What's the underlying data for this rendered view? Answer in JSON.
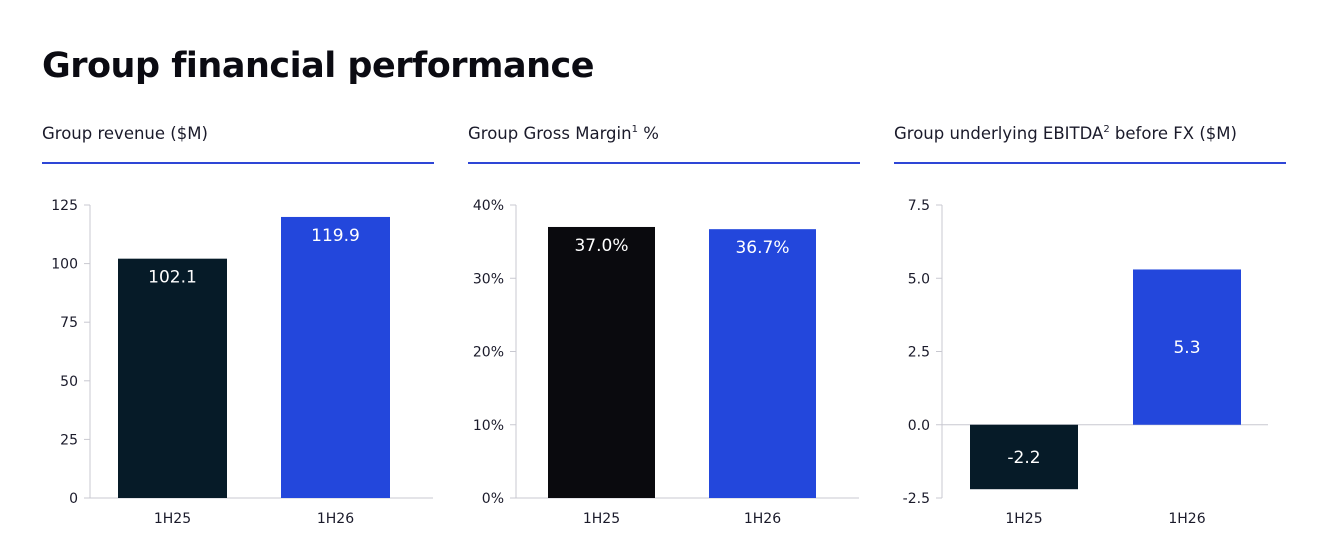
{
  "page": {
    "title": "Group financial performance"
  },
  "colors": {
    "dark": "#061b28",
    "black": "#0a0a0e",
    "blue": "#2347dc",
    "rule": "#2e46d6",
    "axis": "#c8c8d0"
  },
  "chart_data": [
    {
      "type": "bar",
      "title": "Group revenue ($M)",
      "title_sup": "",
      "title_suffix": "",
      "categories": [
        "1H25",
        "1H26"
      ],
      "values": [
        102.1,
        119.9
      ],
      "value_labels": [
        "102.1",
        "119.9"
      ],
      "ylim": [
        0,
        125
      ],
      "yticks": [
        0,
        25,
        50,
        75,
        100,
        125
      ],
      "ytick_labels": [
        "0",
        "25",
        "50",
        "75",
        "100",
        "125"
      ],
      "bar_colors": [
        "#061b28",
        "#2347dc"
      ],
      "label_position": "top",
      "grid": false
    },
    {
      "type": "bar",
      "title": "Group Gross Margin",
      "title_sup": "1",
      "title_suffix": " %",
      "categories": [
        "1H25",
        "1H26"
      ],
      "values": [
        37.0,
        36.7
      ],
      "value_labels": [
        "37.0%",
        "36.7%"
      ],
      "ylim": [
        0,
        40
      ],
      "yticks": [
        0,
        10,
        20,
        30,
        40
      ],
      "ytick_labels": [
        "0%",
        "10%",
        "20%",
        "30%",
        "40%"
      ],
      "bar_colors": [
        "#0a0a0e",
        "#2347dc"
      ],
      "label_position": "top",
      "grid": false
    },
    {
      "type": "bar",
      "title": "Group underlying EBITDA",
      "title_sup": "2",
      "title_suffix": " before FX ($M)",
      "categories": [
        "1H25",
        "1H26"
      ],
      "values": [
        -2.2,
        5.3
      ],
      "value_labels": [
        "-2.2",
        "5.3"
      ],
      "ylim": [
        -2.5,
        7.5
      ],
      "yticks": [
        -2.5,
        0.0,
        2.5,
        5.0,
        7.5
      ],
      "ytick_labels": [
        "-2.5",
        "0.0",
        "2.5",
        "5.0",
        "7.5"
      ],
      "bar_colors": [
        "#061b28",
        "#2347dc"
      ],
      "label_position": "center",
      "grid": false
    }
  ]
}
